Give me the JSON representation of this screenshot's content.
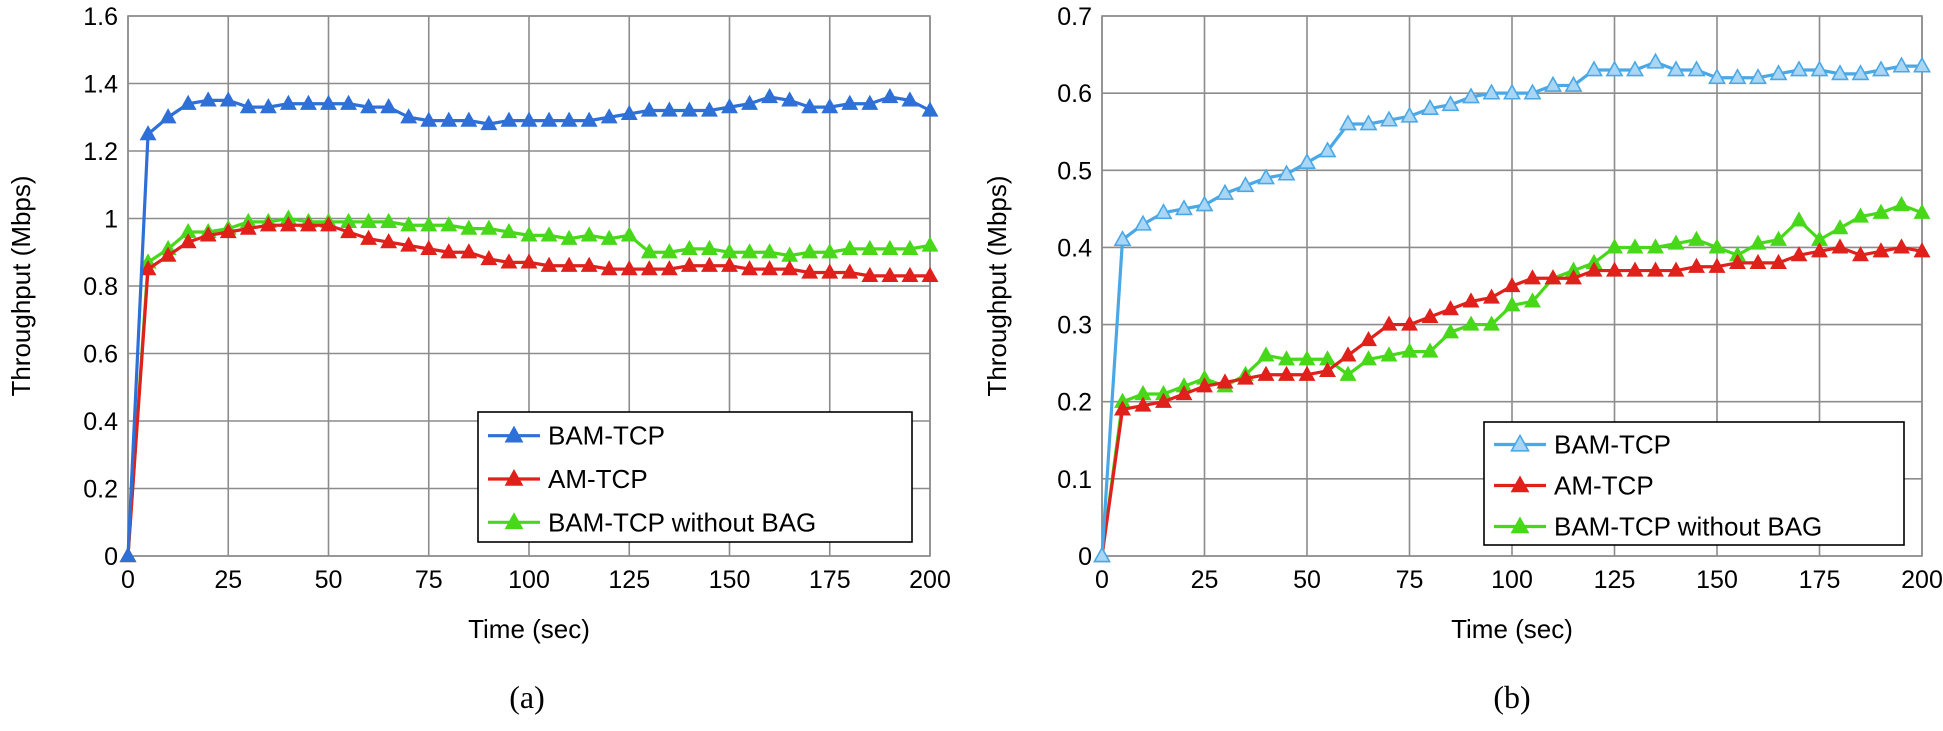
{
  "chart_data": [
    {
      "type": "line",
      "caption": "(a)",
      "xlabel": "Time (sec)",
      "ylabel": "Throughput (Mbps)",
      "xlim": [
        0,
        200
      ],
      "ylim": [
        0,
        1.6
      ],
      "xticks": [
        0,
        25,
        50,
        75,
        100,
        125,
        150,
        175,
        200
      ],
      "yticks": [
        0,
        0.2,
        0.4,
        0.6,
        0.8,
        1,
        1.2,
        1.4,
        1.6
      ],
      "ytick_labels": [
        "0",
        "0.2",
        "0.4",
        "0.6",
        "0.8",
        "1",
        "1.2",
        "1.4",
        "1.6"
      ],
      "grid": true,
      "legend_position": "bottom-right",
      "x": [
        0,
        5,
        10,
        15,
        20,
        25,
        30,
        35,
        40,
        45,
        50,
        55,
        60,
        65,
        70,
        75,
        80,
        85,
        90,
        95,
        100,
        105,
        110,
        115,
        120,
        125,
        130,
        135,
        140,
        145,
        150,
        155,
        160,
        165,
        170,
        175,
        180,
        185,
        190,
        195,
        200
      ],
      "series": [
        {
          "name": "BAM-TCP",
          "color": "#2e6fd8",
          "marker_fill": "#2e6fd8",
          "values": [
            0,
            1.25,
            1.3,
            1.34,
            1.35,
            1.35,
            1.33,
            1.33,
            1.34,
            1.34,
            1.34,
            1.34,
            1.33,
            1.33,
            1.3,
            1.29,
            1.29,
            1.29,
            1.28,
            1.29,
            1.29,
            1.29,
            1.29,
            1.29,
            1.3,
            1.31,
            1.32,
            1.32,
            1.32,
            1.32,
            1.33,
            1.34,
            1.36,
            1.35,
            1.33,
            1.33,
            1.34,
            1.34,
            1.36,
            1.35,
            1.32
          ]
        },
        {
          "name": "AM-TCP",
          "color": "#e0201b",
          "marker_fill": "#e0201b",
          "values": [
            0,
            0.85,
            0.89,
            0.93,
            0.95,
            0.96,
            0.97,
            0.98,
            0.98,
            0.98,
            0.98,
            0.96,
            0.94,
            0.93,
            0.92,
            0.91,
            0.9,
            0.9,
            0.88,
            0.87,
            0.87,
            0.86,
            0.86,
            0.86,
            0.85,
            0.85,
            0.85,
            0.85,
            0.86,
            0.86,
            0.86,
            0.85,
            0.85,
            0.85,
            0.84,
            0.84,
            0.84,
            0.83,
            0.83,
            0.83,
            0.83
          ]
        },
        {
          "name": "BAM-TCP without BAG",
          "color": "#47d81a",
          "marker_fill": "#47d81a",
          "values": [
            0,
            0.87,
            0.91,
            0.96,
            0.96,
            0.97,
            0.99,
            0.99,
            1.0,
            0.99,
            0.99,
            0.99,
            0.99,
            0.99,
            0.98,
            0.98,
            0.98,
            0.97,
            0.97,
            0.96,
            0.95,
            0.95,
            0.94,
            0.95,
            0.94,
            0.95,
            0.9,
            0.9,
            0.91,
            0.91,
            0.9,
            0.9,
            0.9,
            0.89,
            0.9,
            0.9,
            0.91,
            0.91,
            0.91,
            0.91,
            0.92
          ]
        }
      ]
    },
    {
      "type": "line",
      "caption": "(b)",
      "xlabel": "Time (sec)",
      "ylabel": "Throughput (Mbps)",
      "xlim": [
        0,
        200
      ],
      "ylim": [
        0,
        0.7
      ],
      "xticks": [
        0,
        25,
        50,
        75,
        100,
        125,
        150,
        175,
        200
      ],
      "yticks": [
        0,
        0.1,
        0.2,
        0.3,
        0.4,
        0.5,
        0.6,
        0.7
      ],
      "ytick_labels": [
        "0",
        "0.1",
        "0.2",
        "0.3",
        "0.4",
        "0.5",
        "0.6",
        "0.7"
      ],
      "grid": true,
      "legend_position": "bottom-right",
      "x": [
        0,
        5,
        10,
        15,
        20,
        25,
        30,
        35,
        40,
        45,
        50,
        55,
        60,
        65,
        70,
        75,
        80,
        85,
        90,
        95,
        100,
        105,
        110,
        115,
        120,
        125,
        130,
        135,
        140,
        145,
        150,
        155,
        160,
        165,
        170,
        175,
        180,
        185,
        190,
        195,
        200
      ],
      "series": [
        {
          "name": "BAM-TCP",
          "color": "#4aa8e6",
          "marker_fill": "#a9d6f4",
          "values": [
            0,
            0.41,
            0.43,
            0.445,
            0.45,
            0.455,
            0.47,
            0.48,
            0.49,
            0.495,
            0.51,
            0.525,
            0.56,
            0.56,
            0.565,
            0.57,
            0.58,
            0.585,
            0.595,
            0.6,
            0.6,
            0.6,
            0.61,
            0.61,
            0.63,
            0.63,
            0.63,
            0.64,
            0.63,
            0.63,
            0.62,
            0.62,
            0.62,
            0.625,
            0.63,
            0.63,
            0.625,
            0.625,
            0.63,
            0.635,
            0.635
          ]
        },
        {
          "name": "AM-TCP",
          "color": "#e0201b",
          "marker_fill": "#e0201b",
          "values": [
            0,
            0.19,
            0.195,
            0.2,
            0.21,
            0.22,
            0.225,
            0.23,
            0.235,
            0.235,
            0.235,
            0.24,
            0.26,
            0.28,
            0.3,
            0.3,
            0.31,
            0.32,
            0.33,
            0.335,
            0.35,
            0.36,
            0.36,
            0.36,
            0.37,
            0.37,
            0.37,
            0.37,
            0.37,
            0.375,
            0.375,
            0.38,
            0.38,
            0.38,
            0.39,
            0.395,
            0.4,
            0.39,
            0.395,
            0.4,
            0.395
          ]
        },
        {
          "name": "BAM-TCP without BAG",
          "color": "#47d81a",
          "marker_fill": "#47d81a",
          "values": [
            0,
            0.2,
            0.21,
            0.21,
            0.22,
            0.23,
            0.22,
            0.235,
            0.26,
            0.255,
            0.255,
            0.255,
            0.235,
            0.255,
            0.26,
            0.265,
            0.265,
            0.29,
            0.3,
            0.3,
            0.325,
            0.33,
            0.36,
            0.37,
            0.38,
            0.4,
            0.4,
            0.4,
            0.405,
            0.41,
            0.4,
            0.39,
            0.405,
            0.41,
            0.435,
            0.41,
            0.425,
            0.44,
            0.445,
            0.455,
            0.445
          ]
        }
      ]
    }
  ]
}
